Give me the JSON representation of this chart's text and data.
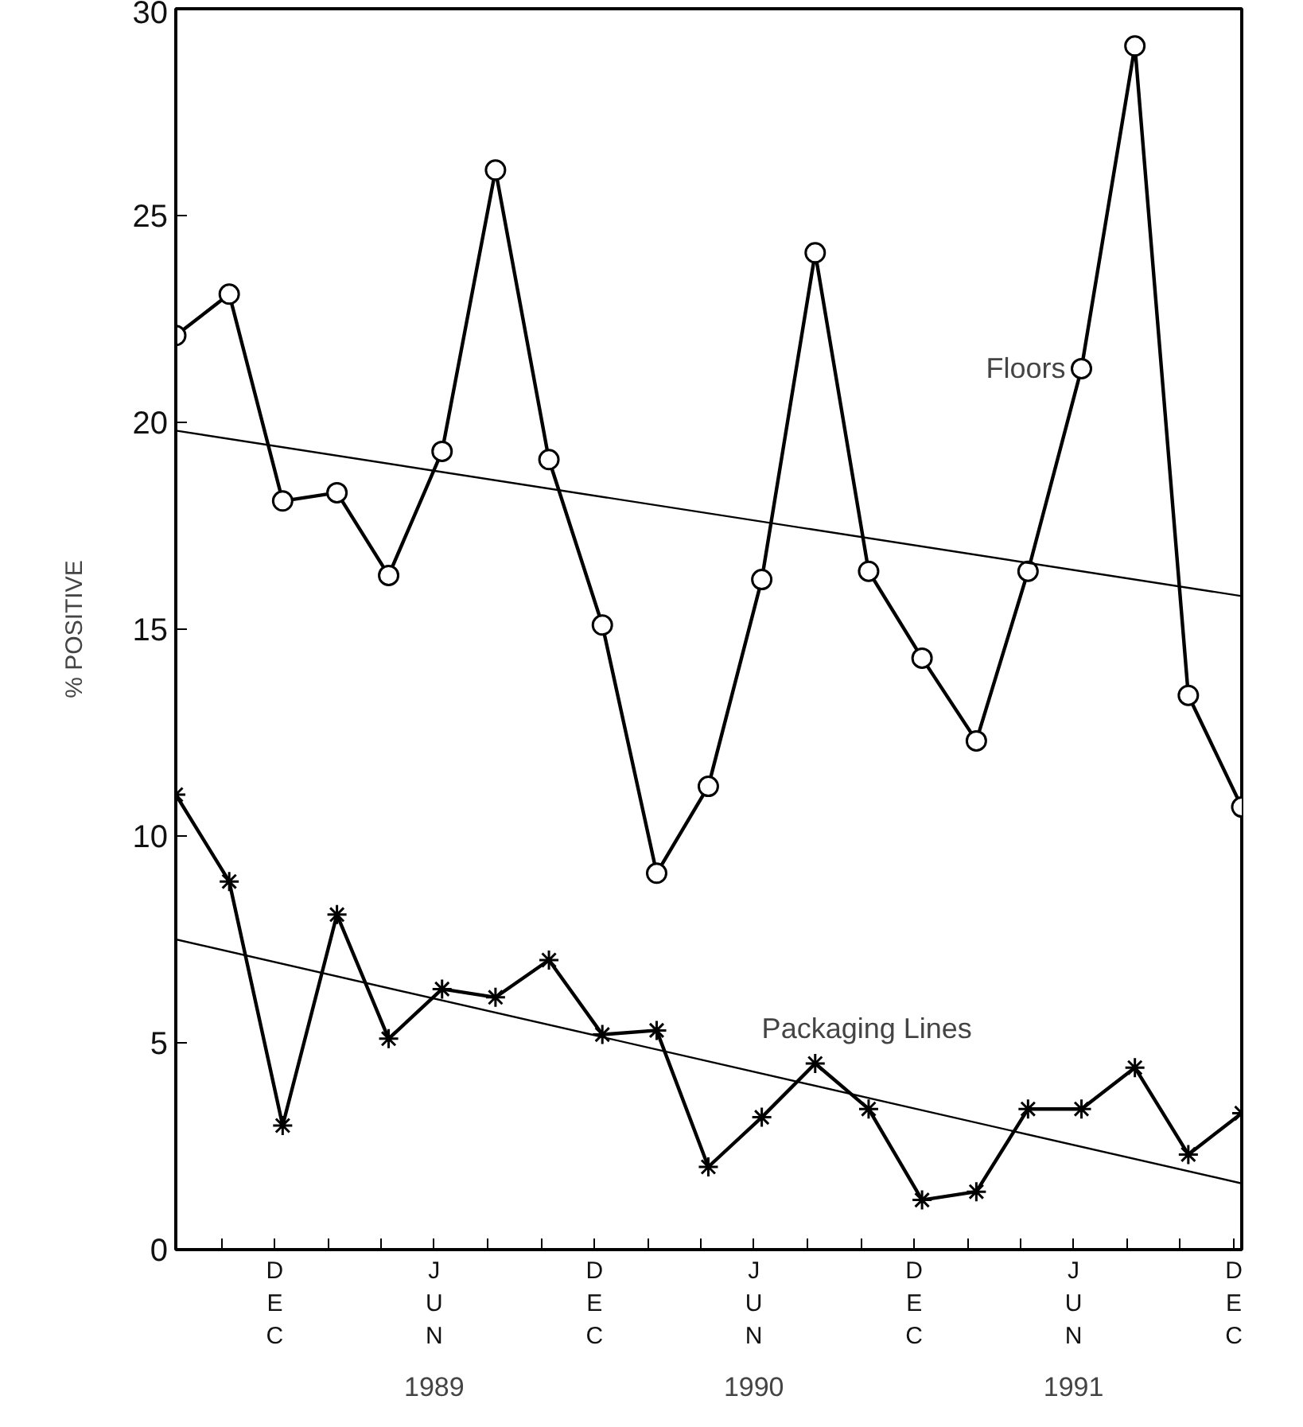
{
  "chart_data": {
    "type": "line",
    "ylabel": "% POSITIVE",
    "x": [
      "1988-08-10",
      "1988-10-10",
      "1988-12-10",
      "1989-02-10",
      "1989-04-10",
      "1989-06-10",
      "1989-08-10",
      "1989-10-10",
      "1989-12-10",
      "1990-02-10",
      "1990-04-10",
      "1990-06-10",
      "1990-08-10",
      "1990-10-10",
      "1990-12-10",
      "1991-02-10",
      "1991-04-10",
      "1991-06-10",
      "1991-08-10",
      "1991-10-10",
      "1991-12-10"
    ],
    "xlim": [
      "1988-08-10",
      "1991-12-10"
    ],
    "xticks": [
      {
        "value": "1988-10-01",
        "label": null
      },
      {
        "value": "1988-12-01",
        "label": "DEC"
      },
      {
        "value": "1989-02-01",
        "label": null
      },
      {
        "value": "1989-04-01",
        "label": null
      },
      {
        "value": "1989-06-01",
        "label": "JUN"
      },
      {
        "value": "1989-08-01",
        "label": null
      },
      {
        "value": "1989-10-01",
        "label": null
      },
      {
        "value": "1989-12-01",
        "label": "DEC"
      },
      {
        "value": "1990-02-01",
        "label": null
      },
      {
        "value": "1990-04-01",
        "label": null
      },
      {
        "value": "1990-06-01",
        "label": "JUN"
      },
      {
        "value": "1990-08-01",
        "label": null
      },
      {
        "value": "1990-10-01",
        "label": null
      },
      {
        "value": "1990-12-01",
        "label": "DEC"
      },
      {
        "value": "1991-02-01",
        "label": null
      },
      {
        "value": "1991-04-01",
        "label": null
      },
      {
        "value": "1991-06-01",
        "label": "JUN"
      },
      {
        "value": "1991-08-01",
        "label": null
      },
      {
        "value": "1991-10-01",
        "label": null
      },
      {
        "value": "1991-12-01",
        "label": "DEC"
      }
    ],
    "x2lim": [
      "1988-08-10",
      "1991-12-10"
    ],
    "x2ticks": [
      {
        "value": "1989-06-01",
        "label": "1989"
      },
      {
        "value": "1990-06-01",
        "label": "1990"
      },
      {
        "value": "1991-06-01",
        "label": "1991"
      }
    ],
    "ylim": [
      0,
      30
    ],
    "yticks": [
      0,
      5,
      10,
      15,
      20,
      25,
      30
    ],
    "grid": false,
    "series": [
      {
        "name": "Floors",
        "color": "#000000",
        "marker": "circle",
        "values": [
          22.1,
          23.1,
          18.1,
          18.3,
          16.3,
          19.3,
          26.1,
          19.1,
          15.1,
          9.1,
          11.2,
          16.2,
          24.1,
          16.4,
          14.3,
          12.3,
          16.4,
          21.3,
          29.1,
          13.4,
          10.7
        ]
      },
      {
        "name": "Packaging Lines",
        "color": "#000000",
        "marker": "cross",
        "values": [
          11.0,
          8.9,
          3.0,
          8.1,
          5.1,
          6.3,
          6.1,
          7.0,
          5.2,
          5.3,
          2.0,
          3.2,
          4.5,
          3.4,
          1.2,
          1.4,
          3.4,
          3.4,
          4.4,
          2.3,
          3.3
        ]
      },
      {
        "type": "line",
        "color": "#000000",
        "marker": "none",
        "x": [
          "1988-08-10",
          "1991-12-10"
        ],
        "values": [
          19.8,
          15.8
        ]
      },
      {
        "type": "line",
        "color": "#000000",
        "marker": "none",
        "x": [
          "1988-08-10",
          "1991-12-10"
        ],
        "values": [
          7.5,
          1.6
        ]
      }
    ]
  }
}
